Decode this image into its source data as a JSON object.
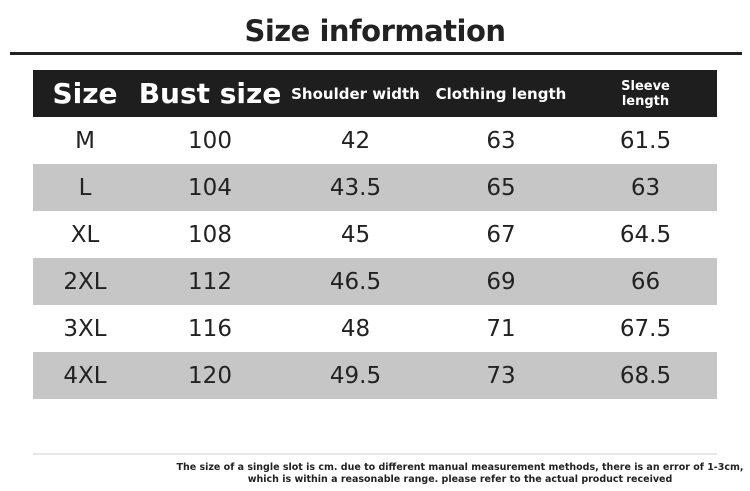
{
  "title": "Size information",
  "table": {
    "headers": [
      "Size",
      "Bust size",
      "Shoulder width",
      "Clothing length",
      "Sleeve length"
    ],
    "sleeve_header_lines": [
      "Sleeve",
      "length"
    ],
    "rows": [
      [
        "M",
        "100",
        "42",
        "63",
        "61.5"
      ],
      [
        "L",
        "104",
        "43.5",
        "65",
        "63"
      ],
      [
        "XL",
        "108",
        "45",
        "67",
        "64.5"
      ],
      [
        "2XL",
        "112",
        "46.5",
        "69",
        "66"
      ],
      [
        "3XL",
        "116",
        "48",
        "71",
        "67.5"
      ],
      [
        "4XL",
        "120",
        "49.5",
        "73",
        "68.5"
      ]
    ]
  },
  "note": {
    "line1": "The size of a single slot is cm. due to different manual measurement methods, there is an error of 1-3cm,",
    "line2": "which is within a reasonable range. please refer to the actual product received"
  },
  "colors": {
    "header_bg": "#1e1e1e",
    "alt_row_bg": "#c6c6c6"
  }
}
